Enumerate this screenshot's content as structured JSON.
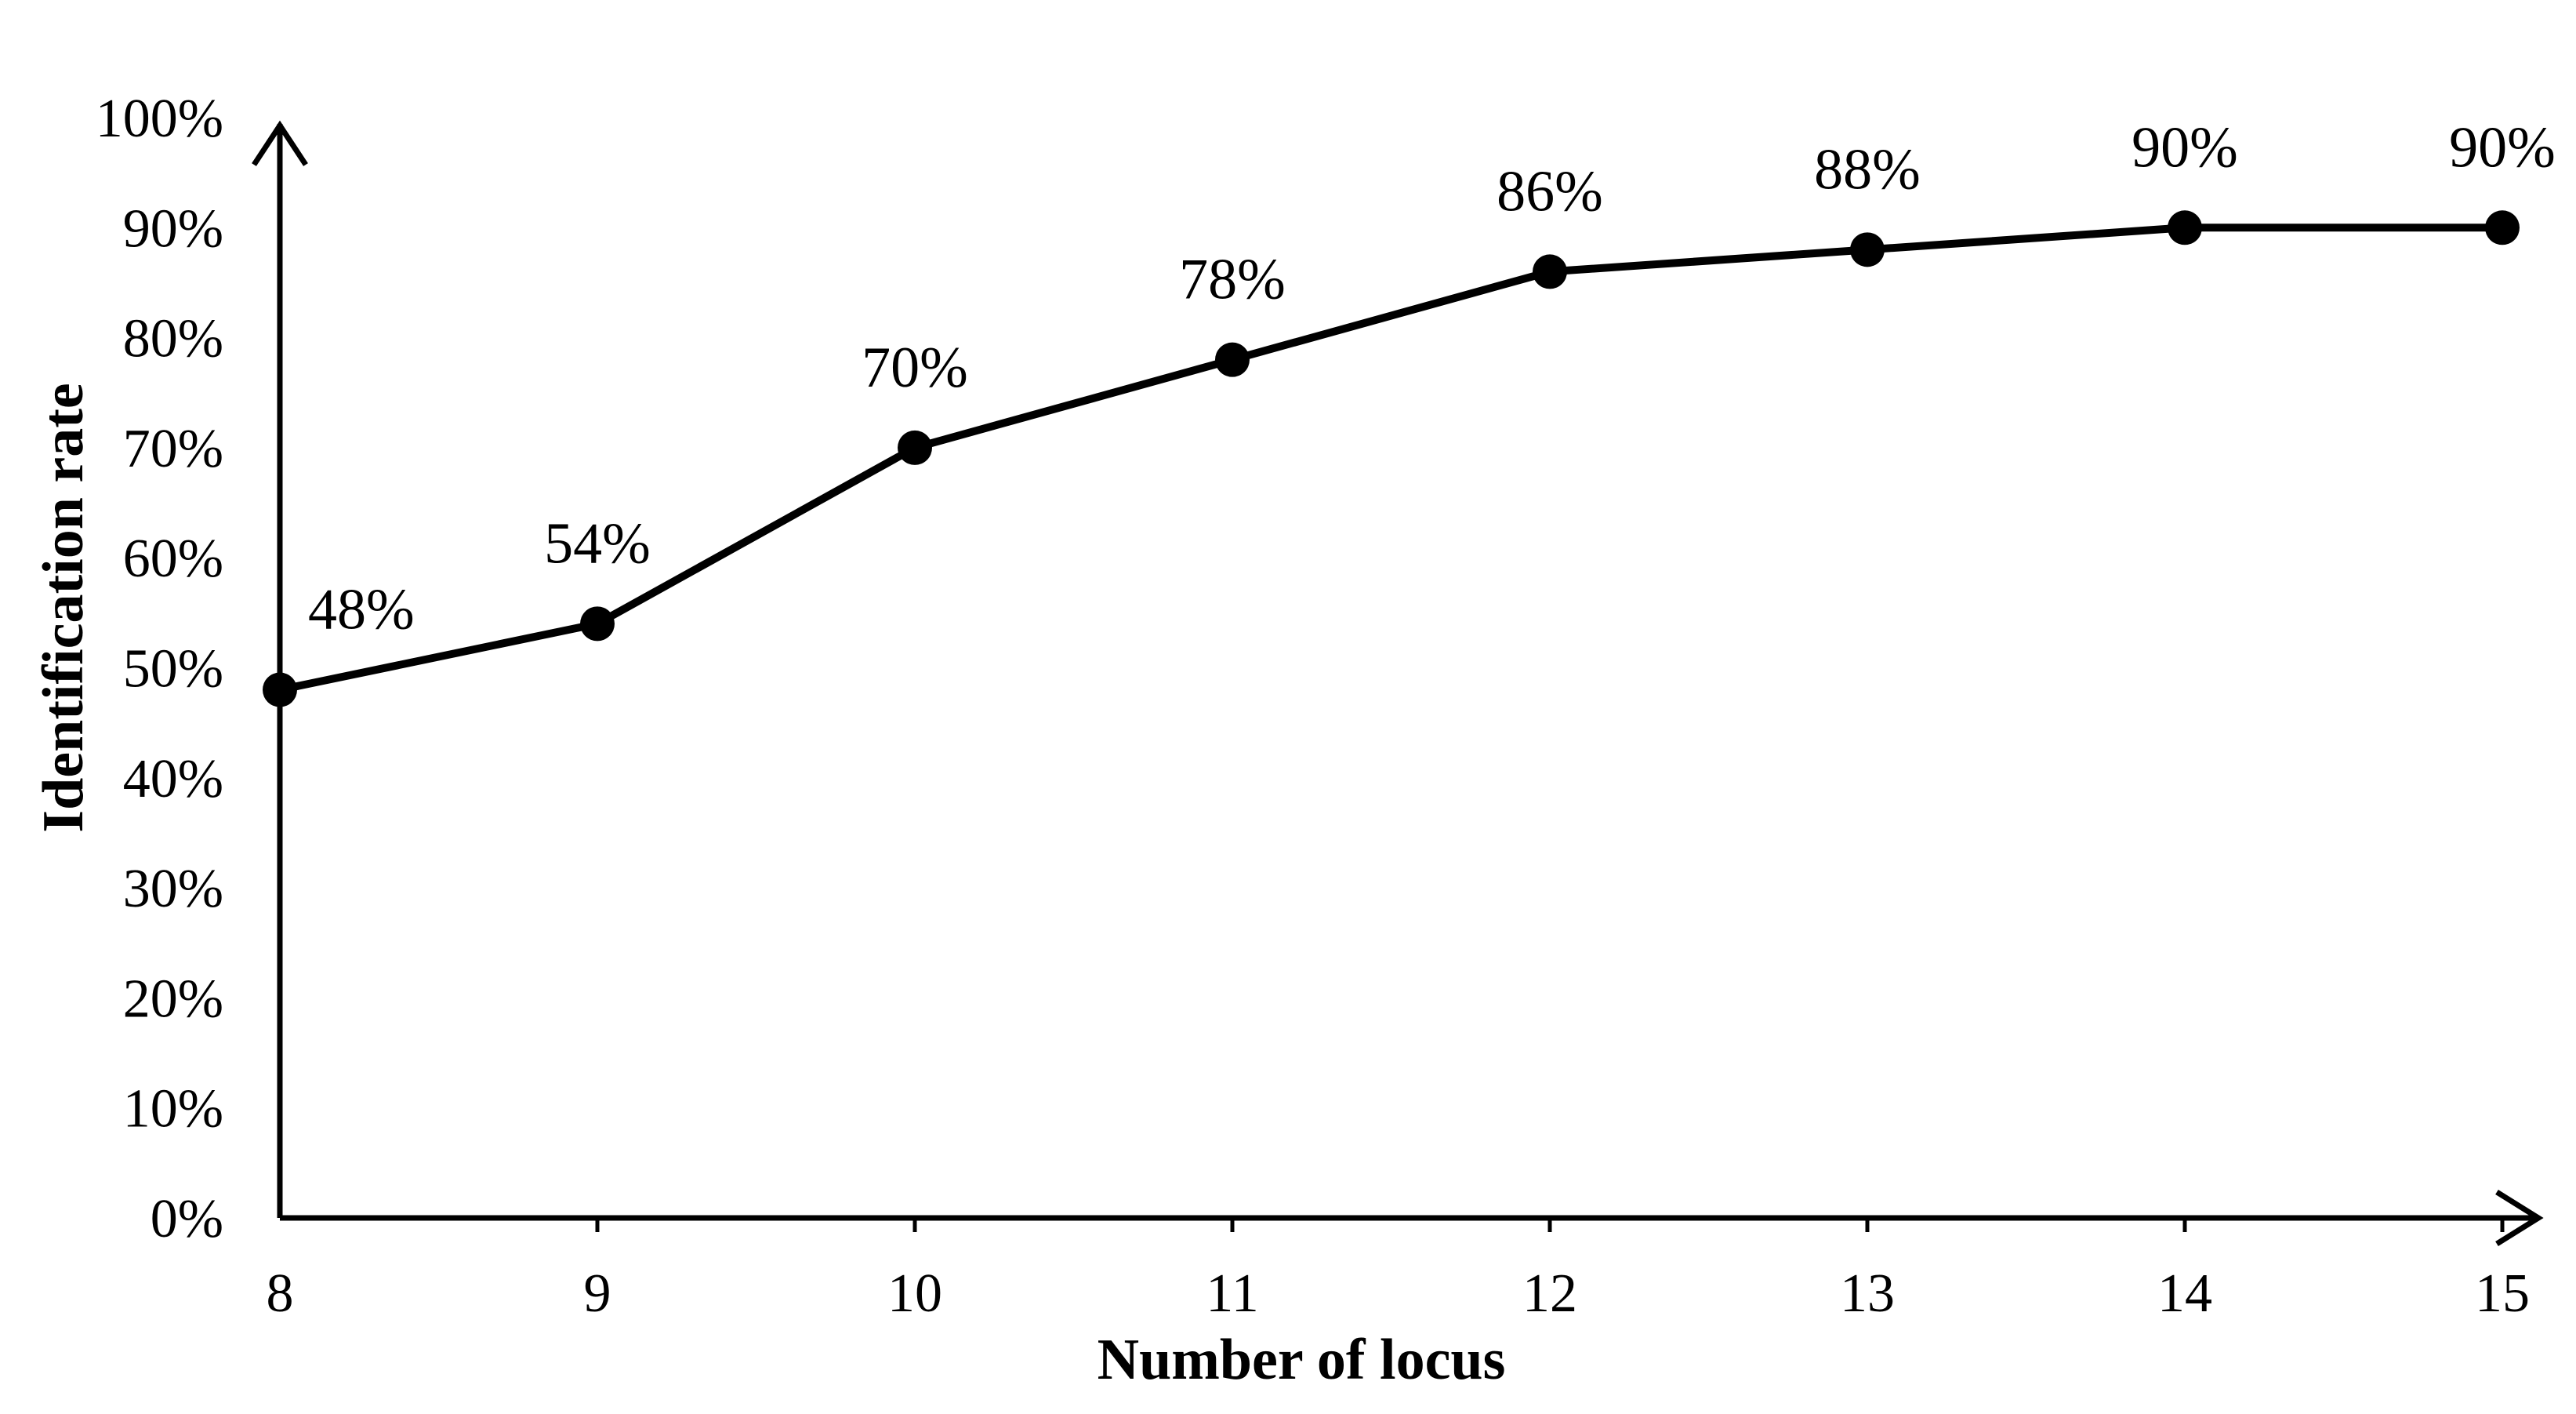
{
  "chart_data": {
    "type": "line",
    "xlabel": "Number of locus",
    "ylabel": "Identification rate",
    "x": [
      8,
      9,
      10,
      11,
      12,
      13,
      14,
      15
    ],
    "series": [
      {
        "values": [
          48,
          54,
          70,
          78,
          86,
          88,
          90,
          90
        ],
        "data_labels": [
          "48%",
          "54%",
          "70%",
          "78%",
          "86%",
          "88%",
          "90%",
          "90%"
        ]
      }
    ],
    "xlim": [
      8,
      15
    ],
    "ylim": [
      0,
      100
    ],
    "x_ticks": [
      "8",
      "9",
      "10",
      "11",
      "12",
      "13",
      "14",
      "15"
    ],
    "y_ticks": [
      "0%",
      "10%",
      "20%",
      "30%",
      "40%",
      "50%",
      "60%",
      "70%",
      "80%",
      "90%",
      "100%"
    ],
    "grid": false,
    "legend": "none",
    "colors": {
      "line": "#000000",
      "marker": "#000000",
      "background": "#ffffff"
    }
  }
}
